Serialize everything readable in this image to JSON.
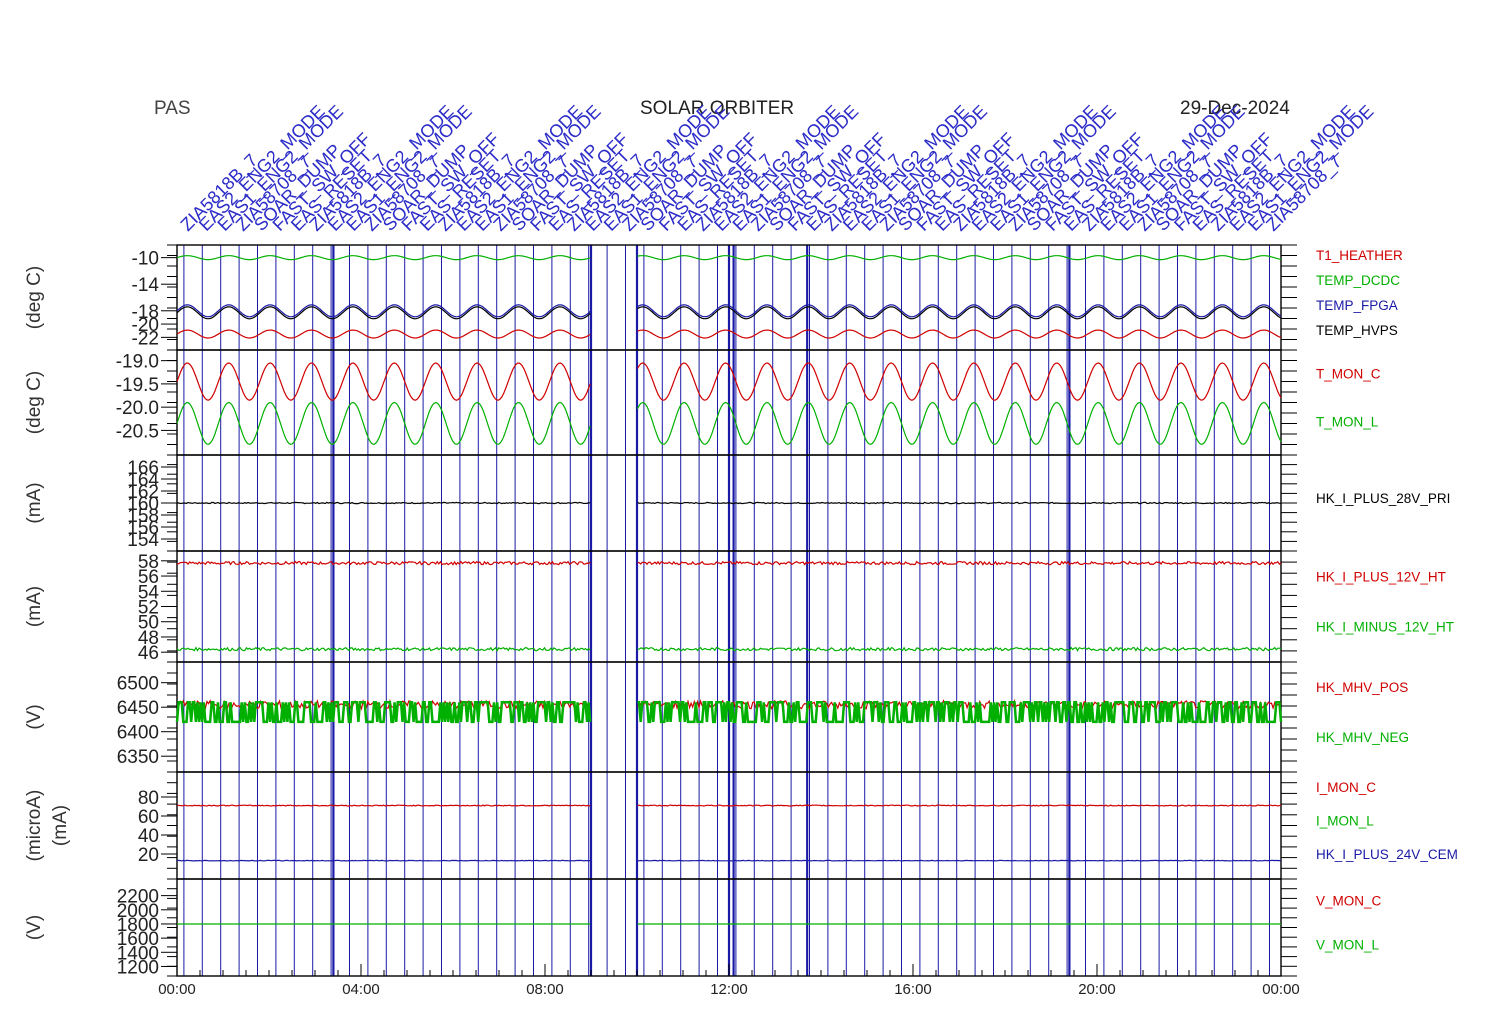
{
  "header": {
    "title": "PAS",
    "center": "SOLAR ORBITER",
    "date": "29-Dec-2024"
  },
  "event_labels": [
    "ZIA5818B_7",
    "EAS2_ENG2_MODE",
    "EAS1_ENG2_MODE",
    "ZIA58708_7",
    "SOAR_DUMP",
    "FAST_SW_OFF",
    "EAS_RESET"
  ],
  "colors": {
    "red": "#d00000",
    "green": "#00b000",
    "blue": "#1a1aa6",
    "black": "#000000"
  },
  "chart_data": [
    {
      "type": "line",
      "ylabel": "(deg C)",
      "yticks": [
        "-10",
        "-14",
        "-18",
        "-20",
        "-22"
      ],
      "ylim": [
        -23,
        -9
      ],
      "series": [
        {
          "name": "T1_HEATHER",
          "color": "#d00000",
          "mean": -21.5,
          "amp": 0.6
        },
        {
          "name": "TEMP_DCDC",
          "color": "#00b000",
          "mean": -10.0,
          "amp": 0.3
        },
        {
          "name": "TEMP_FPGA",
          "color": "#1a1aa6",
          "mean": -18.0,
          "amp": 0.9
        },
        {
          "name": "TEMP_HVPS",
          "color": "#000000",
          "mean": -18.3,
          "amp": 0.9
        }
      ]
    },
    {
      "type": "line",
      "ylabel": "(deg C)",
      "yticks": [
        "-19.0",
        "-19.5",
        "-20.0",
        "-20.5"
      ],
      "ylim": [
        -20.9,
        -18.9
      ],
      "series": [
        {
          "name": "T_MON_C",
          "color": "#d00000",
          "mean": -19.45,
          "amp": 0.4
        },
        {
          "name": "T_MON_L",
          "color": "#00b000",
          "mean": -20.35,
          "amp": 0.45
        }
      ]
    },
    {
      "type": "line",
      "ylabel": "(mA)",
      "yticks": [
        "166",
        "164",
        "162",
        "160",
        "158",
        "156",
        "154"
      ],
      "ylim": [
        153,
        167
      ],
      "series": [
        {
          "name": "HK_I_PLUS_28V_PRI",
          "color": "#000000",
          "mean": 160.0,
          "amp": 0.1
        }
      ]
    },
    {
      "type": "line",
      "ylabel": "(mA)",
      "yticks": [
        "58",
        "56",
        "54",
        "52",
        "50",
        "48",
        "46"
      ],
      "ylim": [
        45.5,
        58.5
      ],
      "series": [
        {
          "name": "HK_I_PLUS_12V_HT",
          "color": "#d00000",
          "mean": 57.7,
          "amp": 0.2
        },
        {
          "name": "HK_I_MINUS_12V_HT",
          "color": "#00b000",
          "mean": 46.4,
          "amp": 0.2
        }
      ]
    },
    {
      "type": "line",
      "ylabel": "(V)",
      "yticks": [
        "6500",
        "6450",
        "6400",
        "6350"
      ],
      "ylim": [
        6330,
        6530
      ],
      "series": [
        {
          "name": "HK_MHV_POS",
          "color": "#d00000",
          "mean": 6455,
          "amp": 8
        },
        {
          "name": "HK_MHV_NEG",
          "color": "#00b000",
          "mean": 6440,
          "amp": 30
        }
      ]
    },
    {
      "type": "line",
      "ylabel": "(microA)",
      "ylabel2": "(mA)",
      "yticks": [
        "80",
        "60",
        "40",
        "20"
      ],
      "ylim": [
        0,
        100
      ],
      "series": [
        {
          "name": "I_MON_C",
          "color": "#d00000",
          "mean": 71,
          "amp": 0.5
        },
        {
          "name": "I_MON_L",
          "color": "#00b000",
          "mean": 0,
          "amp": 0
        },
        {
          "name": "HK_I_PLUS_24V_CEM",
          "color": "#1a1aa6",
          "mean": 13,
          "amp": 0.3
        }
      ]
    },
    {
      "type": "line",
      "ylabel": "(V)",
      "yticks": [
        "2200",
        "2000",
        "1800",
        "1600",
        "1400",
        "1200"
      ],
      "ylim": [
        1150,
        2350
      ],
      "series": [
        {
          "name": "V_MON_C",
          "color": "#d00000",
          "mean": 0,
          "amp": 0
        },
        {
          "name": "V_MON_L",
          "color": "#00b000",
          "mean": 1800,
          "amp": 0
        }
      ]
    }
  ],
  "x_axis": {
    "tick_labels": [
      "00:00",
      "04:00",
      "08:00",
      "12:00",
      "16:00",
      "20:00",
      "00:00"
    ],
    "range_hours": [
      0,
      24
    ]
  }
}
